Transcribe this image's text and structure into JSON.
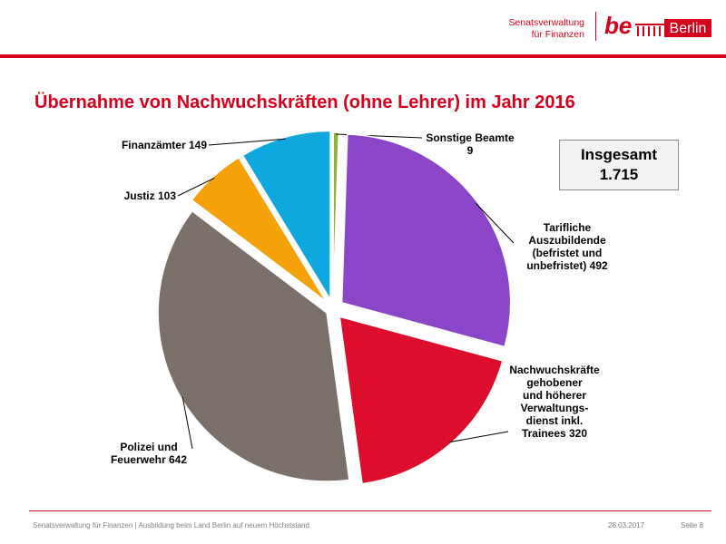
{
  "header": {
    "org_line1": "Senatsverwaltung",
    "org_line2": "für Finanzen",
    "logo_be": "be",
    "logo_city": "Berlin"
  },
  "slide_title": "Übernahme von Nachwuchskräften (ohne Lehrer) im Jahr 2016",
  "total": {
    "label": "Insgesamt",
    "value": "1.715"
  },
  "chart_data": {
    "type": "pie",
    "title": "Übernahme von Nachwuchskräften (ohne Lehrer) im Jahr 2016",
    "total": 1715,
    "start": "12 o'clock, clockwise",
    "slices": [
      {
        "label": "Sonstige Beamte",
        "value": 9,
        "color": "#8db33a",
        "label_lines": [
          "Sonstige Beamte",
          "9"
        ]
      },
      {
        "label": "Tarifliche Auszubildende (befristet und unbefristet)",
        "value": 492,
        "color": "#8b45c9",
        "label_lines": [
          "Tarifliche",
          "Auszubildende",
          "(befristet und",
          "unbefristet) 492"
        ]
      },
      {
        "label": "Nachwuchskräfte gehobener und höherer Verwaltungsdienst inkl. Trainees",
        "value": 320,
        "color": "#dc0e2b",
        "label_lines": [
          "Nachwuchskräfte",
          "gehobener",
          "und höherer",
          "Verwaltungs-",
          "dienst inkl.",
          "Trainees 320"
        ]
      },
      {
        "label": "Polizei und Feuerwehr",
        "value": 642,
        "color": "#7b6f6a",
        "label_lines": [
          "Polizei und",
          "Feuerwehr 642"
        ]
      },
      {
        "label": "Justiz",
        "value": 103,
        "color": "#f4a10a",
        "label_lines": [
          "Justiz 103"
        ]
      },
      {
        "label": "Finanzämter",
        "value": 149,
        "color": "#0ea8de",
        "label_lines": [
          "Finanzämter 149"
        ]
      }
    ]
  },
  "footer": {
    "left": "Senatsverwaltung für Finanzen | Ausbildung beim Land Berlin auf neuem Höchststand",
    "date": "28.03.2017",
    "page": "Seite 8"
  }
}
